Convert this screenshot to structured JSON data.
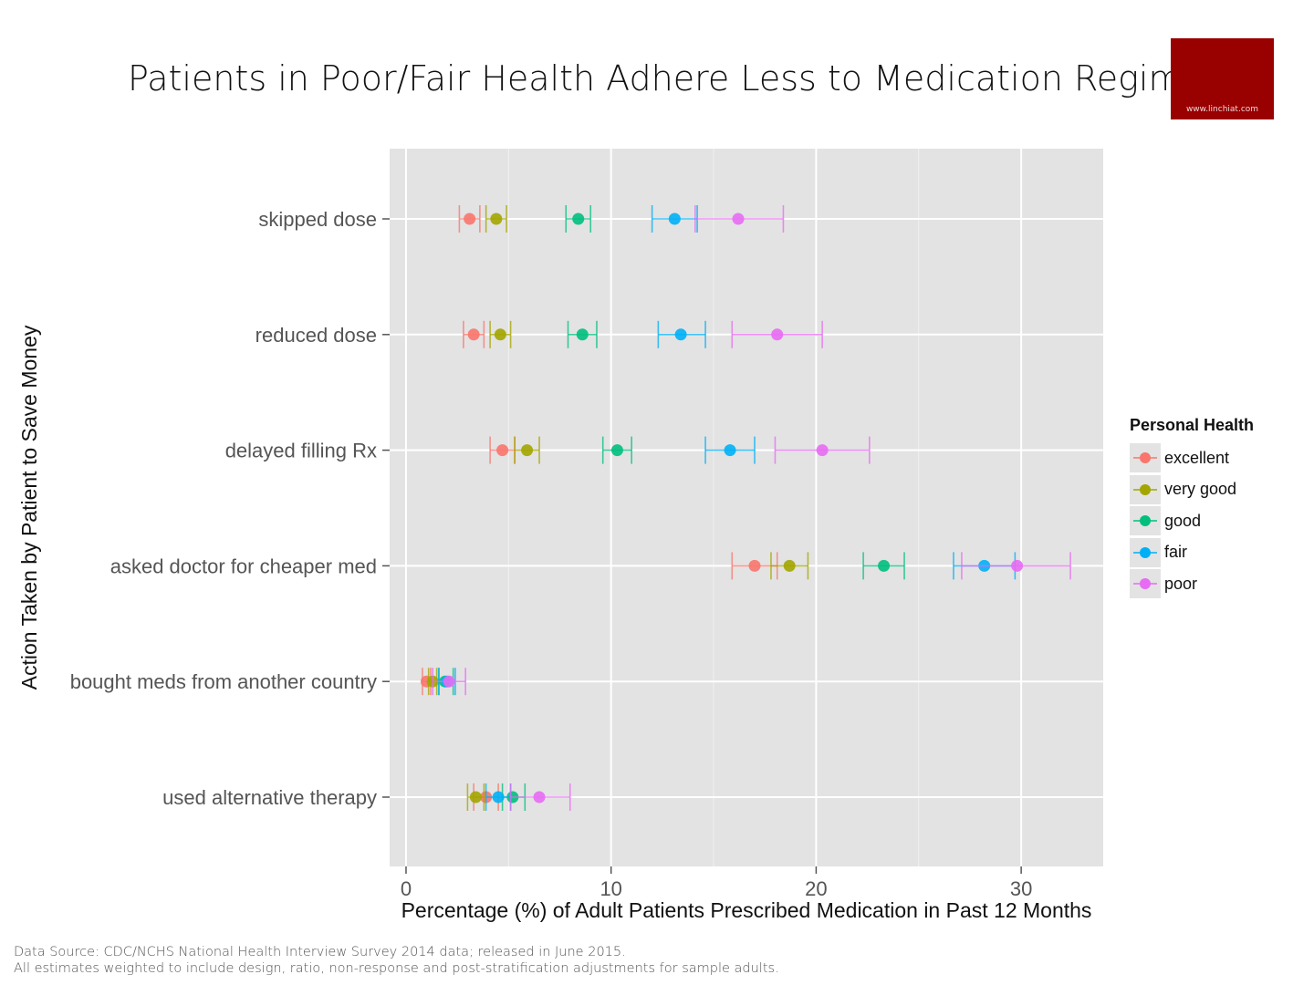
{
  "chart_data": {
    "type": "errorbar-dot",
    "title": "Patients in Poor/Fair Health Adhere Less to Medication Regimen",
    "xlabel": "Percentage (%) of Adult Patients Prescribed Medication in Past 12 Months",
    "ylabel": "Action Taken by Patient to Save Money",
    "xlim": [
      -0.8,
      34
    ],
    "x_ticks": [
      0,
      10,
      20,
      30
    ],
    "grid": true,
    "legend_title": "Personal Health",
    "legend_position": "right",
    "categories": [
      "skipped dose",
      "reduced dose",
      "delayed filling Rx",
      "asked doctor for cheaper med",
      "bought meds from another country",
      "used alternative therapy"
    ],
    "series": [
      {
        "name": "excellent",
        "color": "#F8766D",
        "values": [
          3.1,
          3.3,
          4.7,
          17.0,
          1.0,
          3.9
        ],
        "lower": [
          2.6,
          2.8,
          4.1,
          15.9,
          0.8,
          3.3
        ],
        "upper": [
          3.6,
          3.8,
          5.3,
          18.1,
          1.2,
          4.5
        ]
      },
      {
        "name": "very good",
        "color": "#A3A500",
        "values": [
          4.4,
          4.6,
          5.9,
          18.7,
          1.3,
          3.4
        ],
        "lower": [
          3.9,
          4.1,
          5.3,
          17.8,
          1.1,
          3.0
        ],
        "upper": [
          4.9,
          5.1,
          6.5,
          19.6,
          1.5,
          3.8
        ]
      },
      {
        "name": "good",
        "color": "#00BF7D",
        "values": [
          8.4,
          8.6,
          10.3,
          23.3,
          1.9,
          5.2
        ],
        "lower": [
          7.8,
          7.9,
          9.6,
          22.3,
          1.6,
          4.7
        ],
        "upper": [
          9.0,
          9.3,
          11.0,
          24.3,
          2.3,
          5.8
        ]
      },
      {
        "name": "fair",
        "color": "#00B0F6",
        "values": [
          13.1,
          13.4,
          15.8,
          28.2,
          2.0,
          4.5
        ],
        "lower": [
          12.0,
          12.3,
          14.6,
          26.7,
          1.6,
          3.9
        ],
        "upper": [
          14.2,
          14.6,
          17.0,
          29.7,
          2.4,
          5.1
        ]
      },
      {
        "name": "poor",
        "color": "#E76BF3",
        "values": [
          16.2,
          18.1,
          20.3,
          29.8,
          2.1,
          6.5
        ],
        "lower": [
          14.1,
          15.9,
          18.0,
          27.1,
          1.3,
          5.1
        ],
        "upper": [
          18.4,
          20.3,
          22.6,
          32.4,
          2.9,
          8.0
        ]
      }
    ]
  },
  "logo": {
    "text": "www.linchiat.com"
  },
  "footnote": {
    "line1": "Data Source: CDC/NCHS National Health Interview Survey 2014 data; released in June 2015.",
    "line2": "All estimates weighted to include design, ratio, non-response and post-stratification adjustments for sample adults."
  }
}
